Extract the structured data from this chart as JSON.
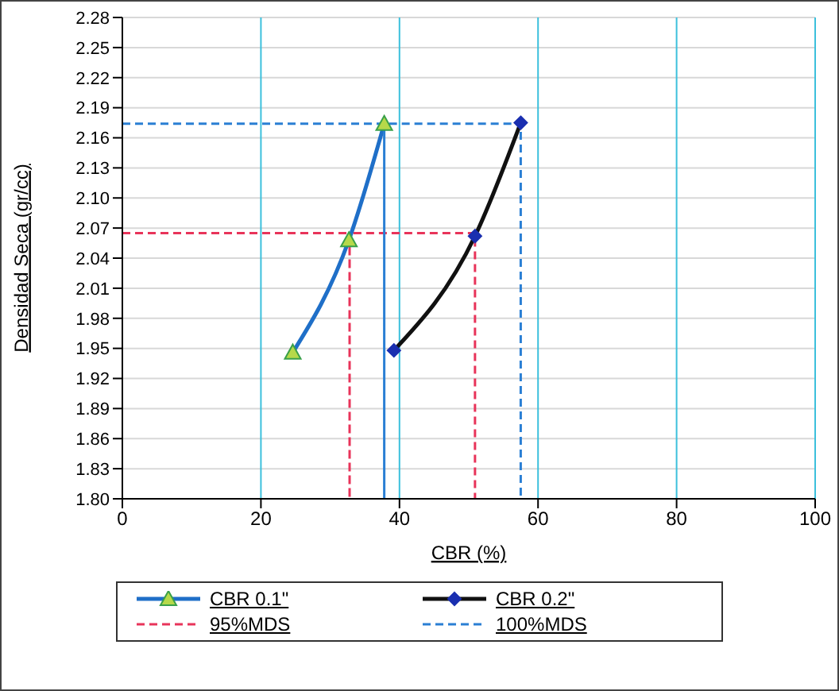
{
  "chart_data": {
    "type": "line",
    "xlabel": "CBR  (%)",
    "ylabel": "Densidad Seca (gr/cc)",
    "xlim": [
      0,
      100
    ],
    "xticks": [
      0,
      20,
      40,
      60,
      80,
      100
    ],
    "ylim": [
      1.8,
      2.28
    ],
    "yticks": [
      {
        "value": 1.8,
        "label": "1.80"
      },
      1.83,
      1.86,
      1.89,
      1.92,
      1.95,
      1.98,
      2.01,
      2.04,
      2.07,
      {
        "value": 2.1,
        "label": "2.10"
      },
      2.13,
      2.16,
      2.19,
      2.22,
      2.25,
      2.28
    ],
    "grid": true,
    "legend": "bottom",
    "series": [
      {
        "name": "CBR 0.1\"",
        "color": "#1f6fc8",
        "marker": "triangle",
        "line_style": "solid",
        "x": [
          24.6,
          32.7,
          37.8
        ],
        "values": [
          1.946,
          2.058,
          2.174
        ]
      },
      {
        "name": "CBR 0.2\"",
        "color": "#111111",
        "marker": "diamond",
        "line_style": "solid",
        "x": [
          39.2,
          50.9,
          57.5
        ],
        "values": [
          1.948,
          2.062,
          2.175
        ]
      },
      {
        "name": "95%MDS",
        "color": "#e8345a",
        "marker": "none",
        "line_style": "dashed",
        "x": [
          0,
          32.8,
          32.8,
          32.8,
          50.9,
          50.9
        ],
        "values": [
          2.065,
          2.065,
          1.8,
          2.065,
          2.065,
          1.8
        ]
      },
      {
        "name": "100%MDS",
        "color": "#2a7fd4",
        "marker": "none",
        "line_style": "dashed",
        "x": [
          0,
          37.8,
          37.8,
          37.8,
          57.5,
          57.5
        ],
        "values": [
          2.174,
          2.174,
          1.8,
          2.174,
          2.174,
          1.8
        ]
      }
    ]
  }
}
